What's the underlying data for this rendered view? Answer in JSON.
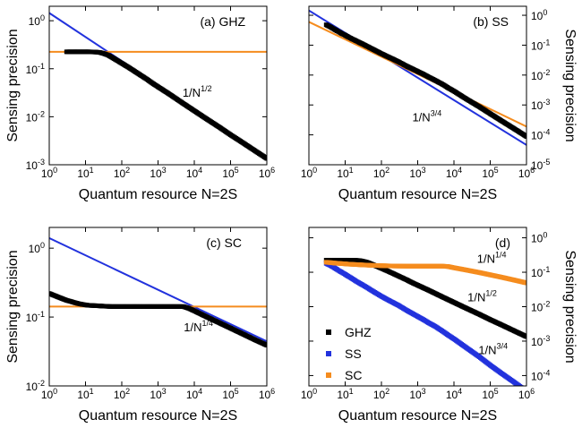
{
  "chart_data": [
    {
      "type": "scatter",
      "panel_label": "(a) GHZ",
      "xlabel": "Quantum resource N=2S",
      "ylabel": "Sensing precision",
      "xscale": "log",
      "yscale": "log",
      "xlim": [
        1,
        1000000
      ],
      "ylim": [
        0.001,
        2
      ],
      "x_ticks": [
        1,
        10,
        100,
        1000,
        10000,
        100000,
        1000000
      ],
      "y_ticks": [
        0.001,
        0.01,
        0.1,
        1
      ],
      "y_axis_side": "left",
      "annotations": [
        {
          "text": "1/N",
          "sup": "1/2",
          "x": 12000,
          "y": 0.026
        }
      ],
      "series": [
        {
          "name": "GHZ",
          "color": "#000000",
          "x": [
            3,
            4,
            5,
            6,
            7,
            8,
            10,
            12,
            15,
            20,
            25,
            30,
            40,
            50,
            70,
            100,
            150,
            200,
            300,
            500,
            700,
            1000,
            2000,
            5000,
            10000,
            20000,
            50000,
            100000,
            200000,
            500000,
            1000000
          ],
          "y": [
            0.225,
            0.225,
            0.225,
            0.225,
            0.225,
            0.225,
            0.225,
            0.225,
            0.224,
            0.222,
            0.218,
            0.21,
            0.195,
            0.178,
            0.153,
            0.13,
            0.108,
            0.094,
            0.077,
            0.06,
            0.05,
            0.042,
            0.03,
            0.0188,
            0.0133,
            0.0094,
            0.006,
            0.0042,
            0.003,
            0.0019,
            0.00135
          ]
        }
      ],
      "lines": [
        {
          "color": "#2232dd",
          "x": [
            1,
            1000000
          ],
          "y": [
            1.45,
            0.00145
          ]
        },
        {
          "color": "#f58c1e",
          "x": [
            1,
            1000000
          ],
          "y": [
            0.225,
            0.225
          ]
        }
      ]
    },
    {
      "type": "scatter",
      "panel_label": "(b) SS",
      "xlabel": "Quantum resource N=2S",
      "ylabel": "Sensing precision",
      "xscale": "log",
      "yscale": "log",
      "xlim": [
        1,
        1000000
      ],
      "ylim": [
        1e-05,
        2
      ],
      "x_ticks": [
        1,
        10,
        100,
        1000,
        10000,
        100000,
        1000000
      ],
      "y_ticks": [
        1e-05,
        0.0001,
        0.001,
        0.01,
        0.1,
        1
      ],
      "y_axis_side": "right",
      "annotations": [
        {
          "text": "1/N",
          "sup": "3/4",
          "x": 1800,
          "y": 0.00028
        }
      ],
      "series": [
        {
          "name": "SS",
          "color": "#000000",
          "x": [
            3,
            4,
            5,
            6,
            7,
            8,
            10,
            12,
            15,
            20,
            25,
            30,
            40,
            50,
            70,
            100,
            150,
            200,
            300,
            500,
            700,
            1000,
            1500,
            2000,
            3000,
            5000,
            7000,
            10000,
            20000,
            50000,
            100000,
            200000,
            500000,
            1000000
          ],
          "y": [
            0.48,
            0.4,
            0.34,
            0.3,
            0.27,
            0.245,
            0.215,
            0.19,
            0.165,
            0.14,
            0.122,
            0.11,
            0.092,
            0.08,
            0.065,
            0.052,
            0.041,
            0.035,
            0.0275,
            0.0198,
            0.0163,
            0.0132,
            0.0104,
            0.0086,
            0.0067,
            0.0048,
            0.0037,
            0.0029,
            0.0017,
            0.00087,
            0.00051,
            0.0003,
            0.00015,
            8.8e-05
          ]
        }
      ],
      "lines": [
        {
          "color": "#2232dd",
          "x": [
            1,
            1000000
          ],
          "y": [
            1.45,
            4.58e-05
          ]
        },
        {
          "color": "#f58c1e",
          "x": [
            1,
            1000000
          ],
          "y": [
            0.6,
            0.00019
          ]
        }
      ]
    },
    {
      "type": "scatter",
      "panel_label": "(c) SC",
      "xlabel": "Quantum resource N=2S",
      "ylabel": "Sensing precision",
      "xscale": "log",
      "yscale": "log",
      "xlim": [
        1,
        1000000
      ],
      "ylim": [
        0.01,
        2
      ],
      "x_ticks": [
        1,
        10,
        100,
        1000,
        10000,
        100000,
        1000000
      ],
      "y_ticks": [
        0.01,
        0.1,
        1
      ],
      "y_axis_side": "left",
      "annotations": [
        {
          "text": "1/N",
          "sup": "1/4",
          "x": 13000,
          "y": 0.062
        }
      ],
      "series": [
        {
          "name": "SC",
          "color": "#000000",
          "x": [
            1,
            2,
            3,
            4,
            5,
            6,
            7,
            8,
            10,
            12,
            15,
            20,
            25,
            30,
            40,
            50,
            70,
            100,
            150,
            200,
            300,
            500,
            700,
            1000,
            2000,
            3000,
            5000,
            7000,
            10000,
            20000,
            50000,
            100000,
            200000,
            500000,
            1000000
          ],
          "y": [
            0.22,
            0.19,
            0.175,
            0.168,
            0.162,
            0.158,
            0.155,
            0.153,
            0.15,
            0.148,
            0.147,
            0.146,
            0.145,
            0.144,
            0.143,
            0.142,
            0.142,
            0.142,
            0.142,
            0.142,
            0.142,
            0.142,
            0.142,
            0.142,
            0.142,
            0.142,
            0.142,
            0.134,
            0.123,
            0.103,
            0.082,
            0.069,
            0.058,
            0.046,
            0.039
          ]
        }
      ],
      "lines": [
        {
          "color": "#2232dd",
          "x": [
            1,
            1000000
          ],
          "y": [
            1.4,
            0.0443
          ]
        },
        {
          "color": "#f58c1e",
          "x": [
            1,
            1000000
          ],
          "y": [
            0.142,
            0.142
          ]
        }
      ]
    },
    {
      "type": "scatter",
      "panel_label": "(d)",
      "xlabel": "Quantum resource N=2S",
      "ylabel": "Sensing precision",
      "xscale": "log",
      "yscale": "log",
      "xlim": [
        1,
        1000000
      ],
      "ylim": [
        5e-05,
        2
      ],
      "x_ticks": [
        1,
        10,
        100,
        1000,
        10000,
        100000,
        1000000
      ],
      "y_ticks": [
        0.0001,
        0.001,
        0.01,
        0.1,
        1
      ],
      "y_axis_side": "right",
      "legend": {
        "position": "bottom-left",
        "entries": [
          "GHZ",
          "SS",
          "SC"
        ]
      },
      "annotations": [
        {
          "text": "1/N",
          "sup": "1/4",
          "x": 110000,
          "y": 0.19
        },
        {
          "text": "1/N",
          "sup": "1/2",
          "x": 60000,
          "y": 0.0145
        },
        {
          "text": "1/N",
          "sup": "3/4",
          "x": 120000,
          "y": 0.00042
        }
      ],
      "series": [
        {
          "name": "GHZ",
          "color": "#000000",
          "x": [
            3,
            4,
            5,
            6,
            7,
            8,
            10,
            12,
            15,
            20,
            25,
            30,
            40,
            50,
            70,
            100,
            150,
            200,
            300,
            500,
            700,
            1000,
            2000,
            5000,
            10000,
            20000,
            50000,
            100000,
            200000,
            500000,
            1000000
          ],
          "y": [
            0.225,
            0.225,
            0.225,
            0.225,
            0.225,
            0.225,
            0.225,
            0.225,
            0.224,
            0.222,
            0.218,
            0.21,
            0.195,
            0.178,
            0.153,
            0.13,
            0.108,
            0.094,
            0.077,
            0.06,
            0.05,
            0.042,
            0.03,
            0.0188,
            0.0133,
            0.0094,
            0.006,
            0.0042,
            0.003,
            0.0019,
            0.00135
          ]
        },
        {
          "name": "SS",
          "color": "#2232dd",
          "x": [
            3,
            4,
            5,
            6,
            7,
            8,
            10,
            12,
            15,
            20,
            25,
            30,
            40,
            50,
            70,
            100,
            150,
            200,
            300,
            500,
            700,
            1000,
            1500,
            2000,
            3000,
            5000,
            7000,
            10000,
            20000,
            50000,
            100000,
            200000,
            500000,
            1000000
          ],
          "y": [
            0.18,
            0.155,
            0.135,
            0.12,
            0.108,
            0.1,
            0.087,
            0.077,
            0.067,
            0.055,
            0.048,
            0.043,
            0.036,
            0.031,
            0.025,
            0.02,
            0.0158,
            0.0135,
            0.0108,
            0.0078,
            0.0064,
            0.0052,
            0.0041,
            0.0034,
            0.0027,
            0.0019,
            0.00148,
            0.00116,
            0.00069,
            0.00035,
            0.0002,
            0.000118,
            6e-05,
            3.5e-05
          ]
        },
        {
          "name": "SC",
          "color": "#f58c1e",
          "x": [
            3,
            4,
            5,
            6,
            7,
            8,
            10,
            12,
            15,
            20,
            25,
            30,
            40,
            50,
            70,
            100,
            150,
            200,
            300,
            500,
            700,
            1000,
            2000,
            3000,
            5000,
            7000,
            10000,
            20000,
            50000,
            100000,
            200000,
            500000,
            1000000
          ],
          "y": [
            0.195,
            0.19,
            0.185,
            0.182,
            0.18,
            0.178,
            0.175,
            0.172,
            0.17,
            0.167,
            0.165,
            0.163,
            0.161,
            0.159,
            0.157,
            0.155,
            0.153,
            0.152,
            0.151,
            0.15,
            0.15,
            0.15,
            0.15,
            0.15,
            0.15,
            0.146,
            0.135,
            0.118,
            0.098,
            0.084,
            0.072,
            0.058,
            0.049
          ]
        }
      ],
      "lines": []
    }
  ]
}
